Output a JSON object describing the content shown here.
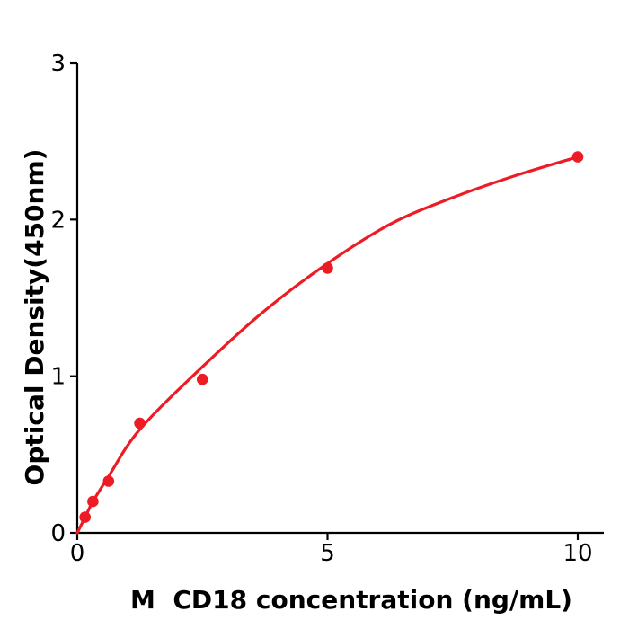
{
  "figure": {
    "background_color": "#ffffff",
    "axis_color": "#000000",
    "accent_red": "#ed1c24"
  },
  "chart_data": {
    "type": "scatter",
    "title": "",
    "xlabel": "M  CD18 concentration (ng/mL)",
    "ylabel": "Optical Density(450nm)",
    "xlim": [
      0,
      10.5
    ],
    "ylim": [
      0,
      3
    ],
    "x_ticks": [
      0,
      5,
      10
    ],
    "y_ticks": [
      0,
      1,
      2,
      3
    ],
    "grid": false,
    "legend_position": "none",
    "series": [
      {
        "name": "standard-points",
        "kind": "scatter",
        "color": "#ed1c24",
        "marker": "circle",
        "x": [
          0.156,
          0.313,
          0.625,
          1.25,
          2.5,
          5,
          10
        ],
        "y": [
          0.1,
          0.2,
          0.33,
          0.7,
          0.98,
          1.69,
          2.4
        ]
      },
      {
        "name": "fitted-curve",
        "kind": "line",
        "color": "#ed1c24",
        "x": [
          0,
          0.156,
          0.313,
          0.625,
          1.25,
          2.5,
          3.75,
          5,
          6.25,
          7.5,
          8.75,
          10
        ],
        "y": [
          0.0,
          0.1,
          0.2,
          0.36,
          0.66,
          1.06,
          1.42,
          1.72,
          1.97,
          2.14,
          2.28,
          2.4
        ]
      }
    ]
  }
}
